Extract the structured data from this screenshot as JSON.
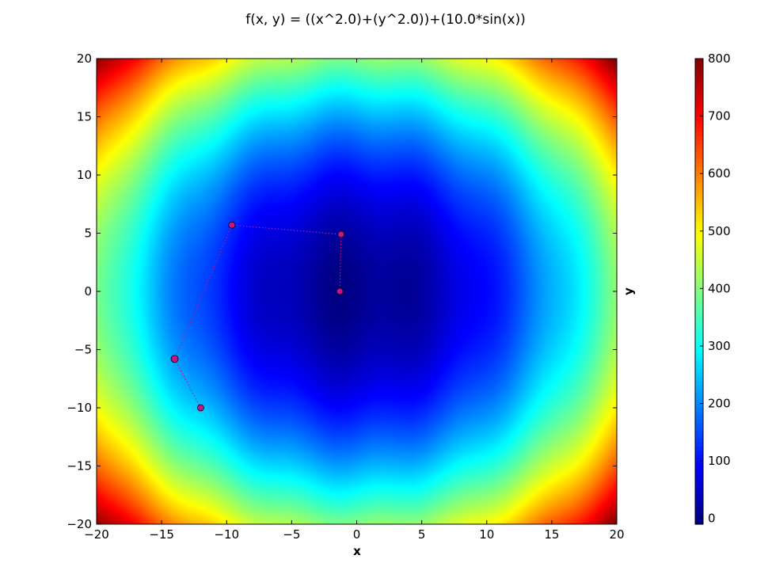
{
  "chart_data": {
    "type": "heatmap",
    "title": "f(x, y) = ((x^2.0)+(y^2.0))+(10.0*sin(x))",
    "xlabel": "x",
    "ylabel": "y",
    "xlim": [
      -20,
      20
    ],
    "ylim": [
      -20,
      20
    ],
    "x_ticks": [
      -20,
      -15,
      -10,
      -5,
      0,
      5,
      10,
      15,
      20
    ],
    "y_ticks": [
      -20,
      -15,
      -10,
      -5,
      0,
      5,
      10,
      15,
      20
    ],
    "tick_labels": {
      "x": [
        "−20",
        "−15",
        "−10",
        "−5",
        "0",
        "5",
        "10",
        "15",
        "20"
      ],
      "y": [
        "−20",
        "−15",
        "−10",
        "−5",
        "0",
        "5",
        "10",
        "15",
        "20"
      ]
    },
    "function": "(x^2)+(y^2)+10*sin(x)",
    "colormap": "jet",
    "color_range": [
      -10,
      800
    ],
    "colorbar_ticks": [
      0,
      100,
      200,
      300,
      400,
      500,
      600,
      700,
      800
    ],
    "colorbar_tick_labels": [
      "0",
      "100",
      "200",
      "300",
      "400",
      "500",
      "600",
      "700",
      "800"
    ],
    "path": {
      "x": [
        -12,
        -14,
        -9.6,
        -1.2,
        -1.3
      ],
      "y": [
        -10,
        -5.8,
        5.7,
        4.9,
        0.0
      ],
      "marker_color": "#c71585",
      "line_color": "#c71585",
      "line_style": "dotted"
    }
  }
}
